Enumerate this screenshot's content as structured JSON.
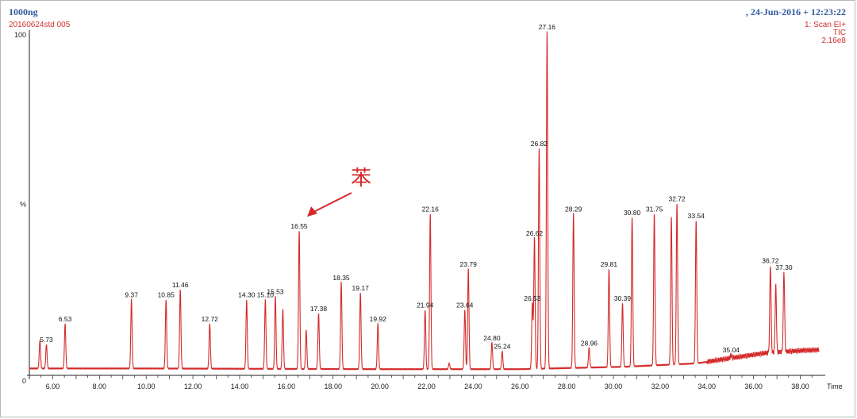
{
  "header": {
    "sample_name": "1000ng",
    "file_name": "20160624std 005",
    "datetime": ",    24-Jun-2016 + 12:23:22",
    "scan_mode": "1: Scan EI+",
    "trace": "TIC",
    "scale": "2.16e8"
  },
  "annotation": {
    "label": "苯",
    "target_peak": "16.55"
  },
  "colors": {
    "trace": "#d42a2a",
    "axis": "#222222",
    "header_blue": "#2f5a9e",
    "header_red": "#d03030"
  },
  "chart_data": {
    "type": "line",
    "title": "",
    "xlabel": "Time",
    "ylabel": "%",
    "xlim": [
      5.0,
      39.0
    ],
    "ylim": [
      0,
      100
    ],
    "x_ticks": [
      "6.00",
      "8.00",
      "10.00",
      "12.00",
      "14.00",
      "16.00",
      "18.00",
      "20.00",
      "22.00",
      "24.00",
      "26.00",
      "28.00",
      "30.00",
      "32.00",
      "34.00",
      "36.00",
      "38.00"
    ],
    "y_ticks": [
      "0",
      "%",
      "100"
    ],
    "grid": false,
    "baseline_points": [
      [
        5.0,
        2
      ],
      [
        10,
        2
      ],
      [
        20,
        1.8
      ],
      [
        26,
        1.8
      ],
      [
        30.5,
        2.5
      ],
      [
        33.6,
        3.5
      ],
      [
        35,
        5
      ],
      [
        36.5,
        6.5
      ],
      [
        38,
        7.2
      ],
      [
        39,
        7.5
      ]
    ],
    "peaks": [
      {
        "rt": 5.45,
        "height": 10,
        "label": ""
      },
      {
        "rt": 5.73,
        "height": 9,
        "label": "5.73"
      },
      {
        "rt": 6.53,
        "height": 15,
        "label": "6.53"
      },
      {
        "rt": 9.37,
        "height": 22,
        "label": "9.37"
      },
      {
        "rt": 10.85,
        "height": 22,
        "label": "10.85"
      },
      {
        "rt": 11.46,
        "height": 25,
        "label": "11.46"
      },
      {
        "rt": 12.72,
        "height": 15,
        "label": "12.72"
      },
      {
        "rt": 14.3,
        "height": 22,
        "label": "14.30"
      },
      {
        "rt": 15.1,
        "height": 22,
        "label": "15.10"
      },
      {
        "rt": 15.53,
        "height": 23,
        "label": "15.53"
      },
      {
        "rt": 15.85,
        "height": 19,
        "label": ""
      },
      {
        "rt": 16.55,
        "height": 42,
        "label": "16.55"
      },
      {
        "rt": 16.85,
        "height": 13,
        "label": ""
      },
      {
        "rt": 17.38,
        "height": 18,
        "label": "17.38"
      },
      {
        "rt": 18.35,
        "height": 27,
        "label": "18.35"
      },
      {
        "rt": 19.17,
        "height": 24,
        "label": "19.17"
      },
      {
        "rt": 19.92,
        "height": 15,
        "label": "19.92"
      },
      {
        "rt": 21.94,
        "height": 19,
        "label": "21.94"
      },
      {
        "rt": 22.16,
        "height": 47,
        "label": "22.16"
      },
      {
        "rt": 22.97,
        "height": 3.5,
        "label": ""
      },
      {
        "rt": 23.64,
        "height": 19,
        "label": "23.64"
      },
      {
        "rt": 23.79,
        "height": 31,
        "label": "23.79"
      },
      {
        "rt": 24.8,
        "height": 9.5,
        "label": "24.80"
      },
      {
        "rt": 25.24,
        "height": 7,
        "label": "25.24"
      },
      {
        "rt": 26.53,
        "height": 21,
        "label": "26.53"
      },
      {
        "rt": 26.62,
        "height": 40,
        "label": "26.62"
      },
      {
        "rt": 26.82,
        "height": 66,
        "label": "26.82"
      },
      {
        "rt": 27.16,
        "height": 100,
        "label": "27.16"
      },
      {
        "rt": 28.29,
        "height": 47,
        "label": "28.29"
      },
      {
        "rt": 28.96,
        "height": 8,
        "label": "28.96"
      },
      {
        "rt": 29.81,
        "height": 31,
        "label": "29.81"
      },
      {
        "rt": 30.39,
        "height": 21,
        "label": "30.39"
      },
      {
        "rt": 30.8,
        "height": 46,
        "label": "30.80"
      },
      {
        "rt": 31.75,
        "height": 47,
        "label": "31.75"
      },
      {
        "rt": 32.48,
        "height": 46,
        "label": ""
      },
      {
        "rt": 32.72,
        "height": 50,
        "label": "32.72"
      },
      {
        "rt": 33.54,
        "height": 45,
        "label": "33.54"
      },
      {
        "rt": 35.04,
        "height": 6,
        "label": "35.04"
      },
      {
        "rt": 36.72,
        "height": 32,
        "label": "36.72"
      },
      {
        "rt": 36.95,
        "height": 26,
        "label": ""
      },
      {
        "rt": 37.3,
        "height": 30,
        "label": "37.30"
      }
    ]
  }
}
